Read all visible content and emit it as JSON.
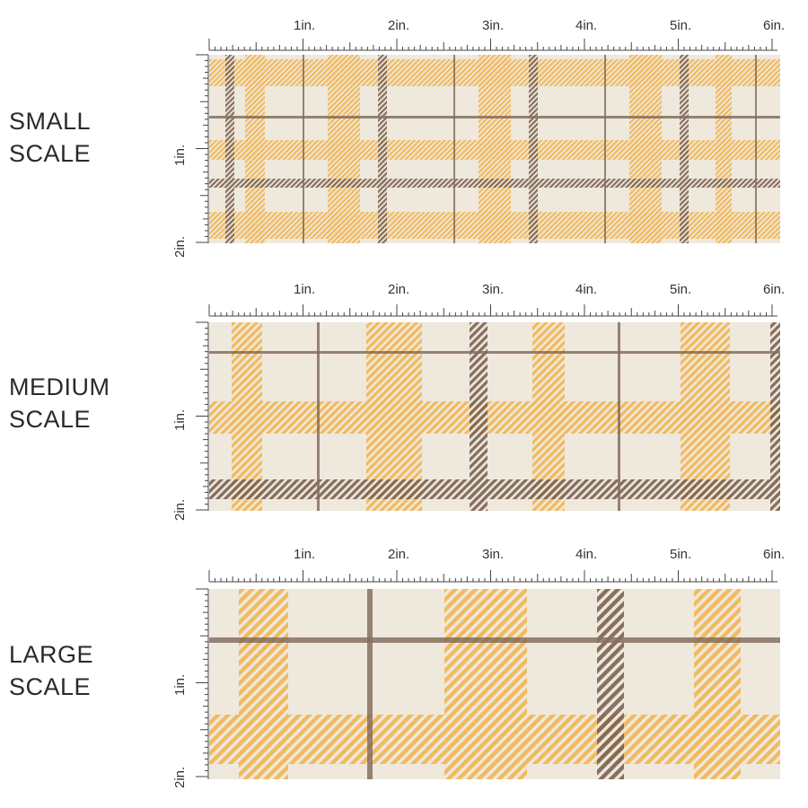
{
  "scales": [
    {
      "label_line1": "SMALL",
      "label_line2": "SCALE",
      "h_ticks": [
        "1in.",
        "2in.",
        "3in.",
        "4in.",
        "5in.",
        "6in."
      ],
      "v_ticks": [
        "1in.",
        "2in."
      ]
    },
    {
      "label_line1": "MEDIUM",
      "label_line2": "SCALE",
      "h_ticks": [
        "1in.",
        "2in.",
        "3in.",
        "4in.",
        "5in.",
        "6in."
      ],
      "v_ticks": [
        "1in.",
        "2in."
      ]
    },
    {
      "label_line1": "LARGE",
      "label_line2": "SCALE",
      "h_ticks": [
        "1in.",
        "2in.",
        "3in.",
        "4in.",
        "5in.",
        "6in."
      ],
      "v_ticks": [
        "1in.",
        "2in."
      ]
    }
  ],
  "colors": {
    "background": "#efe8dc",
    "orange": "#f2b24a",
    "brown": "#7a6252",
    "ruler": "#444444"
  }
}
